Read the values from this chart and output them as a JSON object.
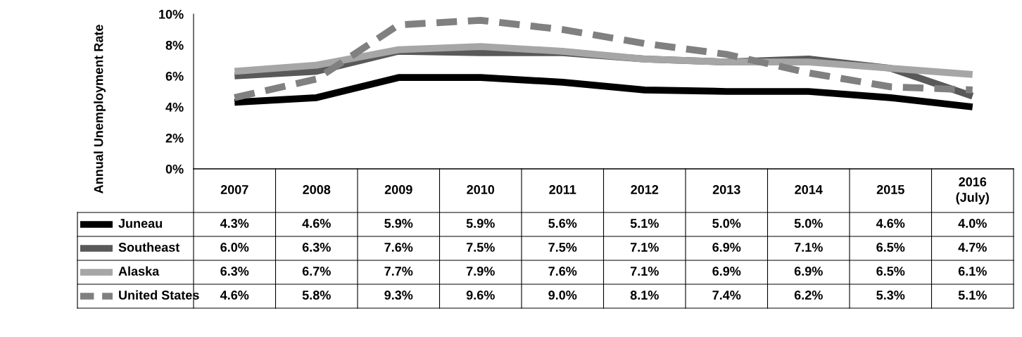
{
  "chart_data": {
    "type": "line",
    "ylabel": "Annual Unemployment Rate",
    "categories": [
      "2007",
      "2008",
      "2009",
      "2010",
      "2011",
      "2012",
      "2013",
      "2014",
      "2015",
      "2016\n(July)"
    ],
    "ylim": [
      0,
      10
    ],
    "yticks": [
      {
        "value": 0,
        "label": "0%"
      },
      {
        "value": 2,
        "label": "2%"
      },
      {
        "value": 4,
        "label": "4%"
      },
      {
        "value": 6,
        "label": "6%"
      },
      {
        "value": 8,
        "label": "8%"
      },
      {
        "value": 10,
        "label": "10%"
      }
    ],
    "grid": false,
    "marker": "none",
    "legend": "left",
    "series": [
      {
        "name": "Juneau",
        "color": "#000000",
        "line_style": "solid",
        "values": [
          4.3,
          4.6,
          5.9,
          5.9,
          5.6,
          5.1,
          5.0,
          5.0,
          4.6,
          4.0
        ],
        "value_labels": [
          "4.3%",
          "4.6%",
          "5.9%",
          "5.9%",
          "5.6%",
          "5.1%",
          "5.0%",
          "5.0%",
          "4.6%",
          "4.0%"
        ]
      },
      {
        "name": "Southeast",
        "color": "#595959",
        "line_style": "solid",
        "values": [
          6.0,
          6.3,
          7.6,
          7.5,
          7.5,
          7.1,
          6.9,
          7.1,
          6.5,
          4.7
        ],
        "value_labels": [
          "6.0%",
          "6.3%",
          "7.6%",
          "7.5%",
          "7.5%",
          "7.1%",
          "6.9%",
          "7.1%",
          "6.5%",
          "4.7%"
        ]
      },
      {
        "name": "Alaska",
        "color": "#a6a6a6",
        "line_style": "solid",
        "values": [
          6.3,
          6.7,
          7.7,
          7.9,
          7.6,
          7.1,
          6.9,
          6.9,
          6.5,
          6.1
        ],
        "value_labels": [
          "6.3%",
          "6.7%",
          "7.7%",
          "7.9%",
          "7.6%",
          "7.1%",
          "6.9%",
          "6.9%",
          "6.5%",
          "6.1%"
        ]
      },
      {
        "name": "United States",
        "color": "#808080",
        "line_style": "dashed",
        "values": [
          4.6,
          5.8,
          9.3,
          9.6,
          9.0,
          8.1,
          7.4,
          6.2,
          5.3,
          5.1
        ],
        "value_labels": [
          "4.6%",
          "5.8%",
          "9.3%",
          "9.6%",
          "9.0%",
          "8.1%",
          "7.4%",
          "6.2%",
          "5.3%",
          "5.1%"
        ]
      }
    ]
  }
}
